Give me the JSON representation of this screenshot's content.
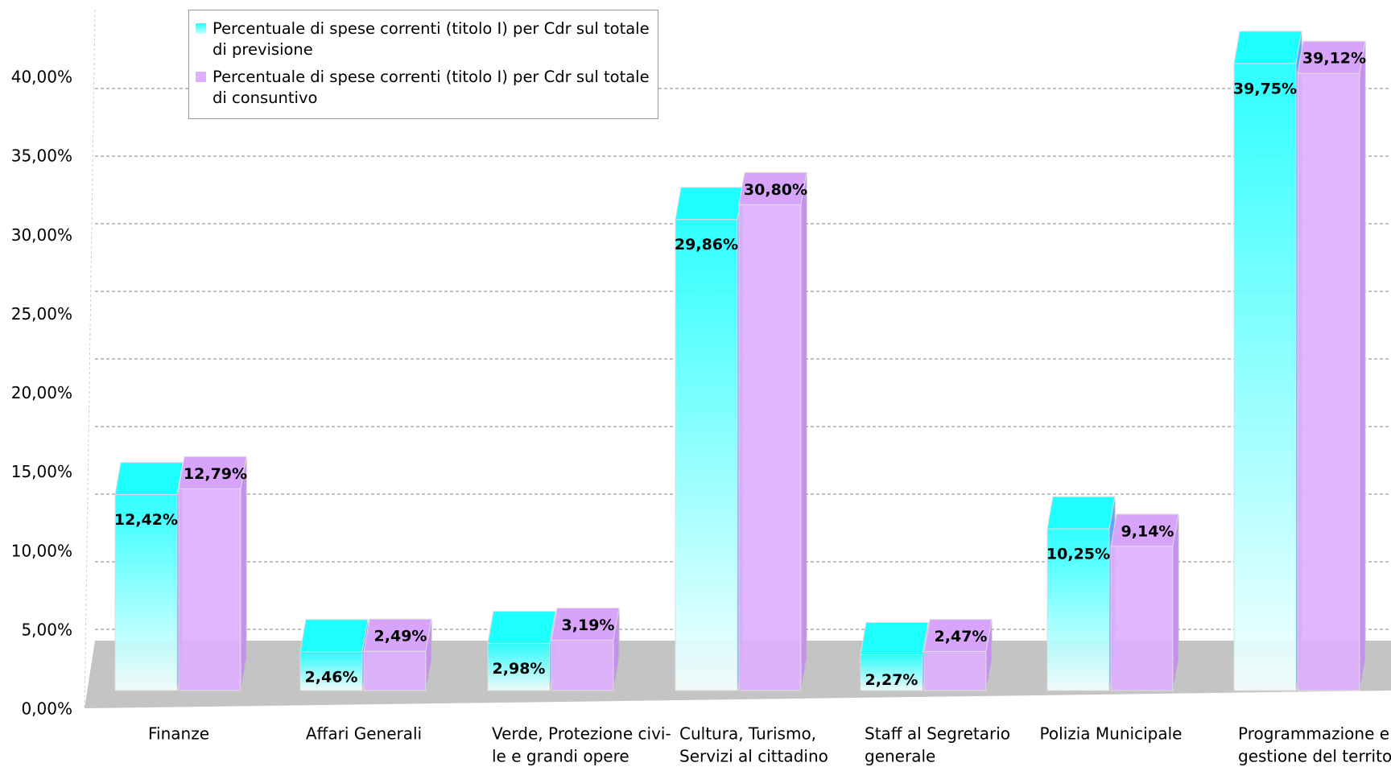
{
  "chart_data": {
    "type": "bar3d",
    "categories": [
      [
        "Finanze"
      ],
      [
        "Affari Generali"
      ],
      [
        "Verde, Protezione civi-",
        "le e grandi opere"
      ],
      [
        "Cultura, Turismo,",
        "Servizi al cittadino"
      ],
      [
        "Staff al Segretario",
        "generale"
      ],
      [
        "Polizia Municipale"
      ],
      [
        "Programmazione e",
        "gestione del territorio"
      ]
    ],
    "series": [
      {
        "name": "Percentuale di spese correnti (titolo I) per Cdr sul totale di previsione",
        "color": "#1effff",
        "values": [
          12.42,
          2.46,
          2.98,
          29.86,
          2.27,
          10.25,
          39.75
        ],
        "value_labels": [
          "12,42%",
          "2,46%",
          "2,98%",
          "29,86%",
          "2,27%",
          "10,25%",
          "39,75%"
        ]
      },
      {
        "name": "Percentuale di spese correnti (titolo I) per Cdr sul totale di consuntivo",
        "color": "#dfb0ff",
        "values": [
          12.79,
          2.49,
          3.19,
          30.8,
          2.47,
          9.14,
          39.12
        ],
        "value_labels": [
          "12,79%",
          "2,49%",
          "3,19%",
          "30,80%",
          "2,47%",
          "9,14%",
          "39,12%"
        ]
      }
    ],
    "ylim": [
      0,
      40
    ],
    "yticks": [
      {
        "value": 0,
        "label": "0,00%"
      },
      {
        "value": 5,
        "label": "5,00%"
      },
      {
        "value": 10,
        "label": "10,00%"
      },
      {
        "value": 15,
        "label": "15,00%"
      },
      {
        "value": 20,
        "label": "20,00%"
      },
      {
        "value": 25,
        "label": "25,00%"
      },
      {
        "value": 30,
        "label": "30,00%"
      },
      {
        "value": 35,
        "label": "35,00%"
      },
      {
        "value": 40,
        "label": "40,00%"
      }
    ],
    "grid": true
  }
}
